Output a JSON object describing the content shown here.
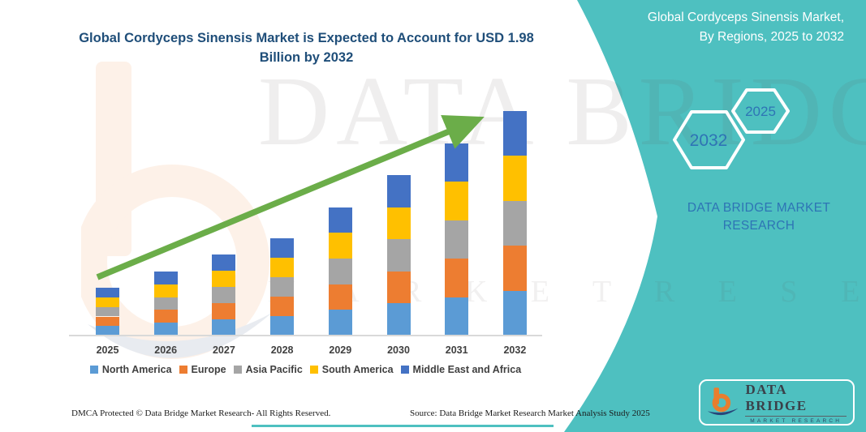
{
  "header": {
    "title": "Global Cordyceps Sinensis Market is Expected to Account for USD 1.98 Billion by 2032"
  },
  "side_panel": {
    "heading_line1": "Global Cordyceps Sinensis Market,",
    "heading_line2": "By Regions, 2025 to 2032",
    "hexagons": [
      {
        "label": "2032"
      },
      {
        "label": "2025"
      }
    ],
    "brand_line1": "DATA BRIDGE MARKET",
    "brand_line2": "RESEARCH",
    "accent_color": "#4EC0C0",
    "text_color": "#2E74B5"
  },
  "logo_card": {
    "brand": "DATA BRIDGE",
    "tagline": "MARKET RESEARCH",
    "logo_icon": "data-bridge-b-logo",
    "orange": "#E87E2E",
    "navy": "#27477A"
  },
  "watermark": {
    "line1": "DATA BRIDGE",
    "line2": "M A R K E T   R E S E A R C H"
  },
  "footer": {
    "left": "DMCA Protected © Data Bridge Market Research-  All Rights Reserved.",
    "right": "Source: Data Bridge Market Research  Market Analysis Study 2025"
  },
  "chart_data": {
    "type": "bar",
    "stacked": true,
    "title": "Global Cordyceps Sinensis Market is Expected to Account for USD 1.98 Billion by 2032",
    "unit": "USD Billion",
    "xlabel": "",
    "ylabel": "",
    "grid": false,
    "axes_labeled": false,
    "legend_position": "bottom",
    "ylim": [
      0,
      2.1
    ],
    "categories": [
      "2025",
      "2026",
      "2027",
      "2028",
      "2029",
      "2030",
      "2031",
      "2032"
    ],
    "totals": [
      0.42,
      0.565,
      0.715,
      0.855,
      1.13,
      1.415,
      1.695,
      1.98
    ],
    "series": [
      {
        "name": "North America",
        "color": "#5B9BD5",
        "values": [
          0.084,
          0.113,
          0.143,
          0.171,
          0.226,
          0.283,
          0.339,
          0.396
        ]
      },
      {
        "name": "Europe",
        "color": "#ED7D31",
        "values": [
          0.084,
          0.113,
          0.143,
          0.171,
          0.226,
          0.283,
          0.339,
          0.396
        ]
      },
      {
        "name": "Asia Pacific",
        "color": "#A5A5A5",
        "values": [
          0.084,
          0.113,
          0.143,
          0.171,
          0.226,
          0.283,
          0.339,
          0.396
        ]
      },
      {
        "name": "South America",
        "color": "#FFC000",
        "values": [
          0.084,
          0.113,
          0.143,
          0.171,
          0.226,
          0.283,
          0.339,
          0.396
        ]
      },
      {
        "name": "Middle East and Africa",
        "color": "#4472C4",
        "values": [
          0.084,
          0.113,
          0.143,
          0.171,
          0.226,
          0.283,
          0.339,
          0.396
        ]
      }
    ],
    "annotations": [
      {
        "type": "trend_arrow",
        "color": "#6BAD49",
        "direction": "up-right"
      }
    ]
  }
}
